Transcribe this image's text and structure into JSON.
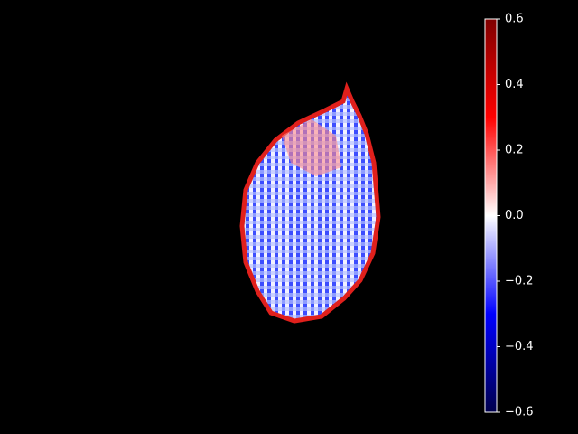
{
  "chart_data": {
    "type": "heatmap",
    "colorbar": {
      "clim": [
        -0.6,
        0.6
      ],
      "ticks": [
        {
          "value": -0.6,
          "label": "−0.6"
        },
        {
          "value": -0.4,
          "label": "−0.4"
        },
        {
          "value": -0.2,
          "label": "−0.2"
        },
        {
          "value": 0,
          "label": "0.0"
        },
        0.2,
        0.4,
        0.6
      ],
      "colors": [
        "#00004c",
        "#0000ff",
        "#ffffff",
        "#ff0000",
        "#7f0000"
      ]
    }
  }
}
